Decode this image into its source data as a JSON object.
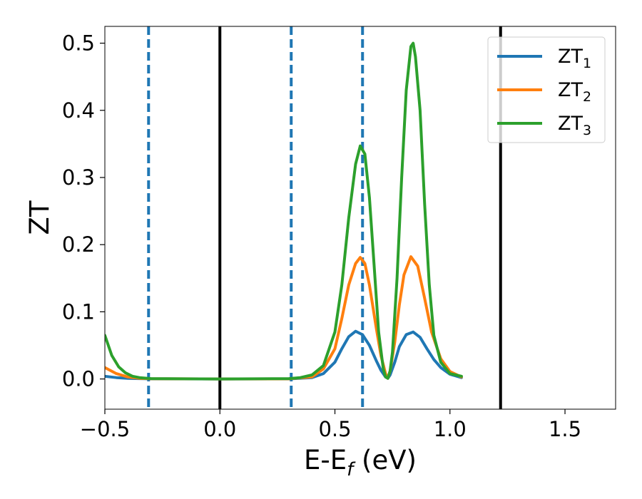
{
  "chart_data": {
    "type": "line",
    "title": "",
    "xlabel": {
      "main": "E-E",
      "sub": "f",
      "suffix": " (eV)"
    },
    "ylabel": "ZT",
    "xlim": [
      -0.5,
      1.72
    ],
    "ylim": [
      -0.045,
      0.525
    ],
    "xticks": [
      -0.5,
      0.0,
      0.5,
      1.0,
      1.5
    ],
    "xtick_labels": [
      "−0.5",
      "0.0",
      "0.5",
      "1.0",
      "1.5"
    ],
    "yticks": [
      0.0,
      0.1,
      0.2,
      0.3,
      0.4,
      0.5
    ],
    "ytick_labels": [
      "0.0",
      "0.1",
      "0.2",
      "0.3",
      "0.4",
      "0.5"
    ],
    "grid": false,
    "legend_position": "top-right",
    "series": [
      {
        "name": "ZT",
        "sub": "1",
        "color": "#1f77b4",
        "x": [
          -0.5,
          -0.45,
          -0.4,
          -0.35,
          -0.3,
          0.0,
          0.3,
          0.4,
          0.45,
          0.5,
          0.53,
          0.56,
          0.59,
          0.62,
          0.65,
          0.68,
          0.7,
          0.72,
          0.73,
          0.74,
          0.76,
          0.78,
          0.81,
          0.84,
          0.87,
          0.9,
          0.93,
          0.96,
          1.0,
          1.05
        ],
        "y": [
          0.004,
          0.002,
          0.001,
          0.0005,
          0.0002,
          0.0,
          0.0001,
          0.002,
          0.008,
          0.025,
          0.045,
          0.063,
          0.071,
          0.066,
          0.05,
          0.027,
          0.013,
          0.003,
          0.001,
          0.006,
          0.025,
          0.048,
          0.066,
          0.07,
          0.062,
          0.045,
          0.029,
          0.017,
          0.007,
          0.002
        ]
      },
      {
        "name": "ZT",
        "sub": "2",
        "color": "#ff7f0e",
        "x": [
          -0.5,
          -0.45,
          -0.4,
          -0.35,
          -0.3,
          0.0,
          0.3,
          0.4,
          0.45,
          0.5,
          0.53,
          0.56,
          0.59,
          0.61,
          0.63,
          0.65,
          0.68,
          0.7,
          0.72,
          0.73,
          0.74,
          0.76,
          0.78,
          0.8,
          0.83,
          0.86,
          0.89,
          0.92,
          0.96,
          1.0,
          1.05
        ],
        "y": [
          0.017,
          0.008,
          0.003,
          0.001,
          0.0004,
          0.0,
          0.0002,
          0.003,
          0.015,
          0.045,
          0.09,
          0.14,
          0.172,
          0.181,
          0.172,
          0.14,
          0.075,
          0.035,
          0.008,
          0.001,
          0.012,
          0.055,
          0.11,
          0.155,
          0.182,
          0.168,
          0.12,
          0.07,
          0.03,
          0.011,
          0.003
        ]
      },
      {
        "name": "ZT",
        "sub": "3",
        "color": "#2ca02c",
        "x": [
          -0.5,
          -0.47,
          -0.44,
          -0.41,
          -0.38,
          -0.35,
          -0.3,
          0.0,
          0.3,
          0.35,
          0.4,
          0.45,
          0.5,
          0.53,
          0.56,
          0.59,
          0.61,
          0.63,
          0.65,
          0.67,
          0.69,
          0.71,
          0.72,
          0.73,
          0.74,
          0.75,
          0.77,
          0.79,
          0.81,
          0.83,
          0.84,
          0.85,
          0.87,
          0.89,
          0.91,
          0.93,
          0.96,
          1.0,
          1.05
        ],
        "y": [
          0.065,
          0.035,
          0.018,
          0.009,
          0.004,
          0.002,
          0.0005,
          0.0,
          0.0005,
          0.002,
          0.006,
          0.02,
          0.07,
          0.14,
          0.24,
          0.32,
          0.347,
          0.335,
          0.27,
          0.17,
          0.07,
          0.015,
          0.003,
          0.001,
          0.012,
          0.04,
          0.15,
          0.3,
          0.43,
          0.495,
          0.5,
          0.48,
          0.4,
          0.26,
          0.14,
          0.065,
          0.025,
          0.008,
          0.004
        ]
      }
    ],
    "vertical_lines": [
      {
        "x": -0.31,
        "style": "dashed",
        "color": "#1f77b4"
      },
      {
        "x": 0.0,
        "style": "solid",
        "color": "#000000"
      },
      {
        "x": 0.31,
        "style": "dashed",
        "color": "#1f77b4"
      },
      {
        "x": 0.62,
        "style": "dashed",
        "color": "#1f77b4"
      },
      {
        "x": 1.22,
        "style": "solid",
        "color": "#000000"
      }
    ]
  }
}
